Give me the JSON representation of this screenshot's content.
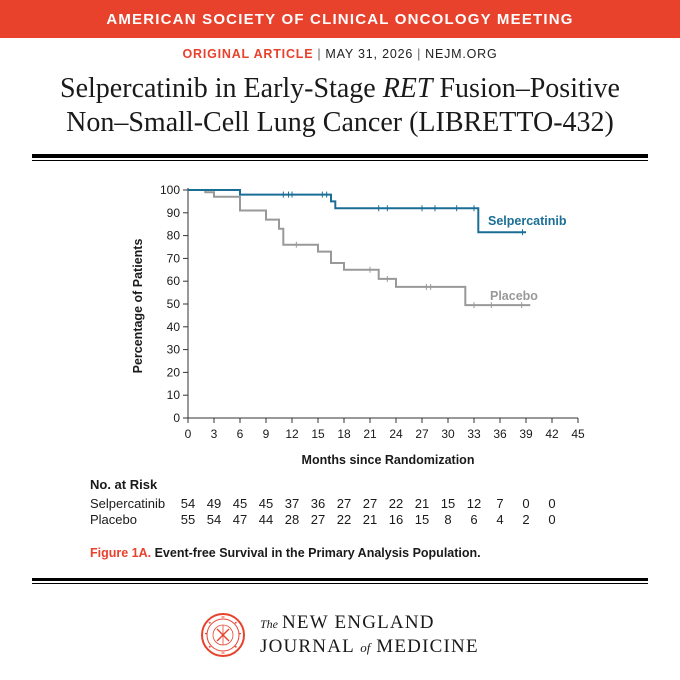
{
  "banner": "AMERICAN SOCIETY OF CLINICAL ONCOLOGY MEETING",
  "meta": {
    "kind": "ORIGINAL ARTICLE",
    "date": "MAY 31, 2026",
    "site": "NEJM.ORG"
  },
  "title": {
    "line1_a": "Selpercatinib in Early-Stage ",
    "line1_em": "RET",
    "line1_b": " Fusion–Positive",
    "line2": "Non–Small-Cell Lung Cancer (LIBRETTO-432)"
  },
  "colors": {
    "accent": "#e8412c",
    "selpercatinib": "#1a6e96",
    "placebo": "#999999"
  },
  "chart_data": {
    "type": "line",
    "step": true,
    "xlabel": "Months since Randomization",
    "ylabel": "Percentage of Patients",
    "xlim": [
      0,
      45
    ],
    "ylim": [
      0,
      100
    ],
    "xticks": [
      0,
      3,
      6,
      9,
      12,
      15,
      18,
      21,
      24,
      27,
      30,
      33,
      36,
      39,
      42,
      45
    ],
    "yticks": [
      0,
      10,
      20,
      30,
      40,
      50,
      60,
      70,
      80,
      90,
      100
    ],
    "series": [
      {
        "name": "Selpercatinib",
        "points": [
          [
            0,
            100
          ],
          [
            6,
            100
          ],
          [
            6,
            98
          ],
          [
            16.5,
            98
          ],
          [
            16.5,
            95
          ],
          [
            17,
            95
          ],
          [
            17,
            92
          ],
          [
            33.5,
            92
          ],
          [
            33.5,
            81.5
          ],
          [
            39,
            81.5
          ]
        ],
        "censored": [
          [
            11,
            98
          ],
          [
            11.6,
            98
          ],
          [
            12,
            98
          ],
          [
            15.5,
            98
          ],
          [
            16,
            98
          ],
          [
            22,
            92
          ],
          [
            23,
            92
          ],
          [
            27,
            92
          ],
          [
            28.5,
            92
          ],
          [
            31,
            92
          ],
          [
            33,
            92
          ],
          [
            38.6,
            81.5
          ]
        ]
      },
      {
        "name": "Placebo",
        "points": [
          [
            0,
            100
          ],
          [
            2,
            100
          ],
          [
            2,
            99
          ],
          [
            3,
            99
          ],
          [
            3,
            97
          ],
          [
            6,
            97
          ],
          [
            6,
            91
          ],
          [
            9,
            91
          ],
          [
            9,
            87
          ],
          [
            10.5,
            87
          ],
          [
            10.5,
            83
          ],
          [
            11,
            83
          ],
          [
            11,
            76
          ],
          [
            15,
            76
          ],
          [
            15,
            73
          ],
          [
            16.5,
            73
          ],
          [
            16.5,
            68
          ],
          [
            18,
            68
          ],
          [
            18,
            65
          ],
          [
            22,
            65
          ],
          [
            22,
            61
          ],
          [
            24,
            61
          ],
          [
            24,
            57.5
          ],
          [
            32,
            57.5
          ],
          [
            32,
            49.5
          ],
          [
            39.5,
            49.5
          ]
        ],
        "censored": [
          [
            12.5,
            76
          ],
          [
            16.5,
            70
          ],
          [
            21,
            65
          ],
          [
            23,
            61
          ],
          [
            27.5,
            57.5
          ],
          [
            28,
            57.5
          ],
          [
            33,
            49.5
          ],
          [
            35,
            49.5
          ],
          [
            38.5,
            49.5
          ]
        ]
      }
    ],
    "annotations": [
      "Selpercatinib",
      "Placebo"
    ]
  },
  "risk_table": {
    "title": "No. at Risk",
    "rows": [
      {
        "label": "Selpercatinib",
        "values": [
          "54",
          "49",
          "45",
          "45",
          "37",
          "36",
          "27",
          "27",
          "22",
          "21",
          "15",
          "12",
          "7",
          "0",
          "0"
        ]
      },
      {
        "label": "Placebo",
        "values": [
          "55",
          "54",
          "47",
          "44",
          "28",
          "27",
          "22",
          "21",
          "16",
          "15",
          "8",
          "6",
          "4",
          "2",
          "0"
        ]
      }
    ]
  },
  "caption": {
    "figure": "Figure 1A.",
    "text": " Event-free Survival in the Primary Analysis Population."
  },
  "journal": {
    "the": "The",
    "line1": "NEW ENGLAND",
    "line2_a": "JOURNAL ",
    "line2_of": "of",
    "line2_b": " MEDICINE",
    "seal_text": "MEDICINE AND THE NEW ENGLAND 1812 SURGERY"
  }
}
